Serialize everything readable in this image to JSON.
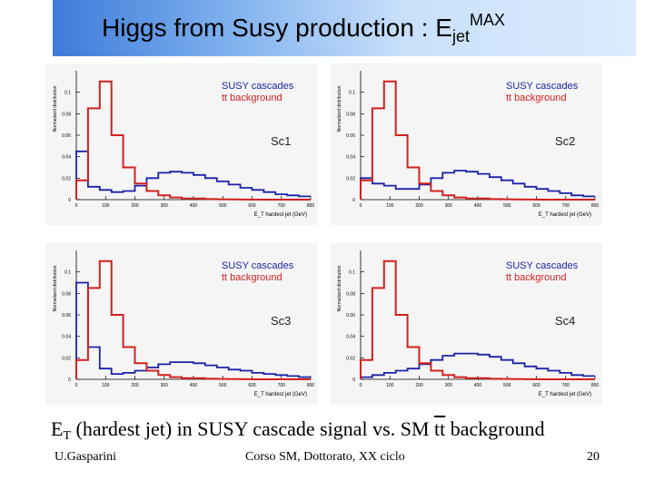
{
  "slide": {
    "title": {
      "main": "Higgs from Susy production : E",
      "sub": "jet",
      "sup": "MAX"
    },
    "caption": {
      "prefix": "E",
      "sub": "T",
      "middle": " (hardest jet) in SUSY cascade signal vs. SM ",
      "tt": "tt",
      "suffix": " background"
    },
    "footer": {
      "left": "U.Gasparini",
      "center": "Corso SM, Dottorato, XX ciclo",
      "right": "20"
    }
  },
  "colors": {
    "signal": "#1a23a8",
    "background": "#d42020",
    "panel_bg": "#f5f5f5",
    "title_gradient_start": "#3d7bd9",
    "title_gradient_end": "#dcebfd"
  },
  "chart_data": [
    {
      "type": "histogram",
      "scenario": "Sc1",
      "xlabel": "E_T hardest jet (GeV)",
      "ylabel": "Normalized distribution",
      "xlim": [
        0,
        800
      ],
      "ylim": [
        0,
        0.12
      ],
      "xticks": [
        "0",
        "100",
        "200",
        "300",
        "400",
        "500",
        "600",
        "700",
        "800"
      ],
      "yticks": [
        "0",
        "0.02",
        "0.04",
        "0.06",
        "0.08",
        "0.1"
      ],
      "legend": [
        "SUSY cascades",
        "tt background"
      ],
      "bin_centers": [
        20,
        60,
        100,
        140,
        180,
        220,
        260,
        300,
        340,
        380,
        420,
        460,
        500,
        540,
        580,
        620,
        660,
        700,
        740,
        780
      ],
      "series": [
        {
          "name": "SUSY cascades",
          "values": [
            0.045,
            0.012,
            0.009,
            0.007,
            0.008,
            0.013,
            0.02,
            0.025,
            0.026,
            0.025,
            0.023,
            0.02,
            0.017,
            0.014,
            0.011,
            0.009,
            0.007,
            0.005,
            0.004,
            0.003
          ]
        },
        {
          "name": "tt background",
          "values": [
            0.018,
            0.085,
            0.11,
            0.06,
            0.03,
            0.015,
            0.008,
            0.004,
            0.002,
            0.001,
            0.001,
            0.0005,
            0.0003,
            0.0002,
            0.0001,
            0,
            0,
            0,
            0,
            0
          ]
        }
      ]
    },
    {
      "type": "histogram",
      "scenario": "Sc2",
      "xlabel": "E_T hardest jet (GeV)",
      "ylabel": "Normalized distribution",
      "xlim": [
        0,
        800
      ],
      "ylim": [
        0,
        0.12
      ],
      "xticks": [
        "0",
        "100",
        "200",
        "300",
        "400",
        "500",
        "600",
        "700",
        "800"
      ],
      "yticks": [
        "0",
        "0.02",
        "0.04",
        "0.06",
        "0.08",
        "0.1"
      ],
      "legend": [
        "SUSY cascades",
        "tt background"
      ],
      "bin_centers": [
        20,
        60,
        100,
        140,
        180,
        220,
        260,
        300,
        340,
        380,
        420,
        460,
        500,
        540,
        580,
        620,
        660,
        700,
        740,
        780
      ],
      "series": [
        {
          "name": "SUSY cascades",
          "values": [
            0.02,
            0.015,
            0.013,
            0.01,
            0.01,
            0.014,
            0.02,
            0.025,
            0.027,
            0.026,
            0.024,
            0.021,
            0.018,
            0.015,
            0.012,
            0.01,
            0.008,
            0.006,
            0.004,
            0.003
          ]
        },
        {
          "name": "tt background",
          "values": [
            0.018,
            0.085,
            0.11,
            0.06,
            0.03,
            0.015,
            0.008,
            0.004,
            0.002,
            0.001,
            0.001,
            0.0005,
            0.0003,
            0.0002,
            0.0001,
            0,
            0,
            0,
            0,
            0
          ]
        }
      ]
    },
    {
      "type": "histogram",
      "scenario": "Sc3",
      "xlabel": "E_T hardest jet (GeV)",
      "ylabel": "Normalized distribution",
      "xlim": [
        0,
        800
      ],
      "ylim": [
        0,
        0.12
      ],
      "xticks": [
        "0",
        "100",
        "200",
        "300",
        "400",
        "500",
        "600",
        "700",
        "800"
      ],
      "yticks": [
        "0",
        "0.02",
        "0.04",
        "0.06",
        "0.08",
        "0.1"
      ],
      "legend": [
        "SUSY cascades",
        "tt background"
      ],
      "bin_centers": [
        20,
        60,
        100,
        140,
        180,
        220,
        260,
        300,
        340,
        380,
        420,
        460,
        500,
        540,
        580,
        620,
        660,
        700,
        740,
        780
      ],
      "series": [
        {
          "name": "SUSY cascades",
          "values": [
            0.09,
            0.03,
            0.01,
            0.005,
            0.006,
            0.008,
            0.011,
            0.014,
            0.016,
            0.016,
            0.015,
            0.013,
            0.011,
            0.009,
            0.008,
            0.006,
            0.005,
            0.004,
            0.003,
            0.002
          ]
        },
        {
          "name": "tt background",
          "values": [
            0.018,
            0.085,
            0.11,
            0.06,
            0.03,
            0.015,
            0.008,
            0.004,
            0.002,
            0.001,
            0.001,
            0.0005,
            0.0003,
            0.0002,
            0.0001,
            0,
            0,
            0,
            0,
            0
          ]
        }
      ]
    },
    {
      "type": "histogram",
      "scenario": "Sc4",
      "xlabel": "E_T hardest jet (GeV)",
      "ylabel": "Normalized distribution",
      "xlim": [
        0,
        800
      ],
      "ylim": [
        0,
        0.12
      ],
      "xticks": [
        "0",
        "100",
        "200",
        "300",
        "400",
        "500",
        "600",
        "700",
        "800"
      ],
      "yticks": [
        "0",
        "0.02",
        "0.04",
        "0.06",
        "0.08",
        "0.1"
      ],
      "legend": [
        "SUSY cascades",
        "tt background"
      ],
      "bin_centers": [
        20,
        60,
        100,
        140,
        180,
        220,
        260,
        300,
        340,
        380,
        420,
        460,
        500,
        540,
        580,
        620,
        660,
        700,
        740,
        780
      ],
      "series": [
        {
          "name": "SUSY cascades",
          "values": [
            0.002,
            0.004,
            0.006,
            0.008,
            0.01,
            0.014,
            0.018,
            0.022,
            0.024,
            0.024,
            0.023,
            0.021,
            0.018,
            0.015,
            0.012,
            0.01,
            0.008,
            0.006,
            0.004,
            0.003
          ]
        },
        {
          "name": "tt background",
          "values": [
            0.018,
            0.085,
            0.11,
            0.06,
            0.03,
            0.015,
            0.008,
            0.004,
            0.002,
            0.001,
            0.001,
            0.0005,
            0.0003,
            0.0002,
            0.0001,
            0,
            0,
            0,
            0,
            0
          ]
        }
      ]
    }
  ]
}
